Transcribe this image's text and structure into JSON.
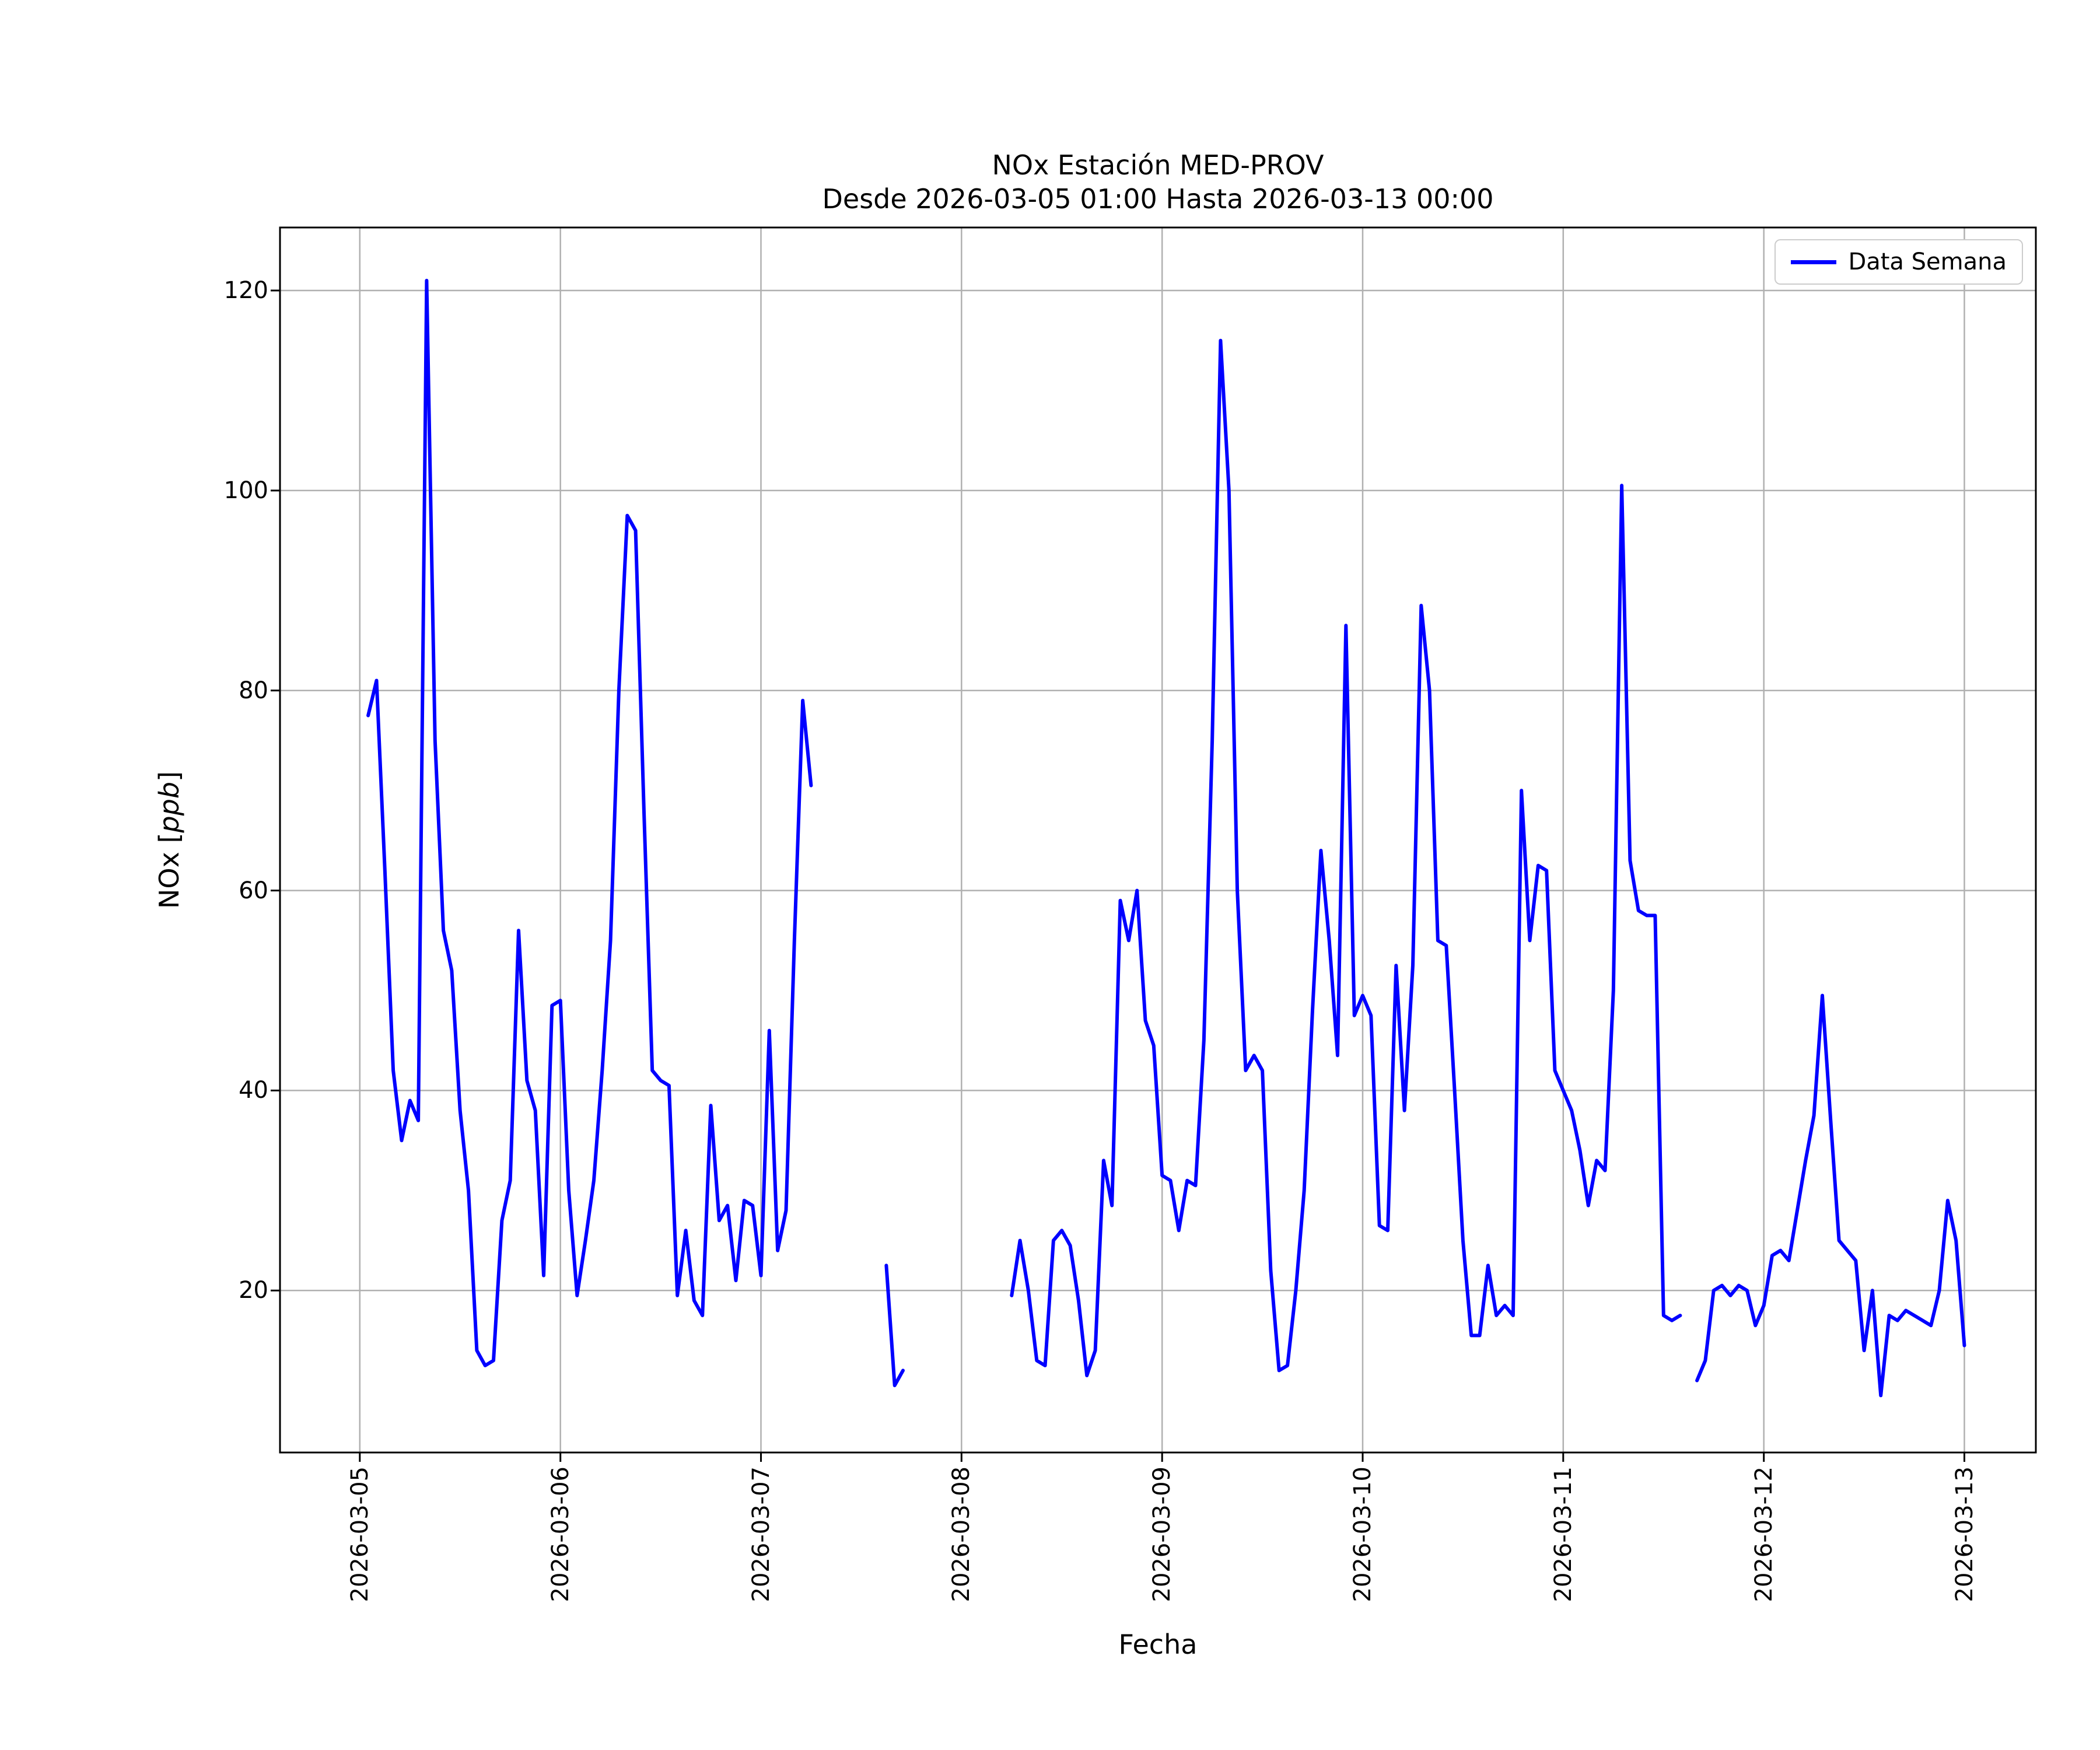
{
  "chart_data": {
    "type": "line",
    "title": "NOx Estación MED-PROV",
    "subtitle": "Desde 2026-03-05 01:00 Hasta 2026-03-13 00:00",
    "xlabel": "Fecha",
    "ylabel": "NOx [ppb]",
    "ylabel_parts": {
      "prefix": "NOx [",
      "italic": "ppb",
      "suffix": "]"
    },
    "grid": true,
    "legend_position": "upper right",
    "colors": {
      "line": "#0000ff",
      "grid": "#b0b0b0",
      "spine": "#000000",
      "legend_border": "#cccccc"
    },
    "x_tick_labels": [
      "2026-03-05",
      "2026-03-06",
      "2026-03-07",
      "2026-03-08",
      "2026-03-09",
      "2026-03-10",
      "2026-03-11",
      "2026-03-12",
      "2026-03-13"
    ],
    "x_tick_hours": [
      0,
      24,
      48,
      72,
      96,
      120,
      144,
      168,
      192
    ],
    "yticks": [
      20,
      40,
      60,
      80,
      100,
      120
    ],
    "ylim": [
      3.8,
      126.3
    ],
    "xlim_hours": [
      -9.55,
      200.55
    ],
    "x_unit": "hours since 2026-03-05 00:00, hourly samples",
    "start_hour": 1,
    "series": [
      {
        "name": "Data Semana",
        "color": "#0000ff",
        "values": [
          77.5,
          81,
          62,
          42,
          35,
          39,
          37,
          121,
          75,
          56,
          52,
          38,
          30,
          14,
          12.5,
          13,
          27,
          31,
          56,
          41,
          38,
          21.5,
          48.5,
          49,
          30,
          19.5,
          25,
          31,
          42,
          55,
          80,
          97.5,
          96,
          68,
          42,
          41,
          40.5,
          19.5,
          26,
          19,
          17.5,
          38.5,
          27,
          28.5,
          21,
          29,
          28.5,
          21.5,
          46,
          24,
          28,
          55,
          79,
          70.5,
          null,
          null,
          null,
          null,
          null,
          null,
          null,
          null,
          22.5,
          10.5,
          12,
          null,
          null,
          null,
          null,
          null,
          null,
          null,
          null,
          null,
          null,
          null,
          null,
          19.5,
          25,
          20,
          13,
          12.5,
          25,
          26,
          24.5,
          19,
          11.5,
          14,
          33,
          28.5,
          59,
          55,
          60,
          47,
          44.5,
          31.5,
          31,
          26,
          31,
          30.5,
          45,
          75,
          115,
          100,
          60,
          42,
          43.5,
          42,
          22,
          12,
          12.5,
          20,
          30,
          48,
          64,
          55,
          43.5,
          86.5,
          47.5,
          49.5,
          47.5,
          26.5,
          26,
          52.5,
          38,
          52.5,
          88.5,
          80,
          55,
          54.5,
          40,
          25,
          15.5,
          15.5,
          22.5,
          17.5,
          18.5,
          17.5,
          70,
          55,
          62.5,
          62,
          42,
          40,
          38,
          34,
          28.5,
          33,
          32,
          50,
          100.5,
          63,
          58,
          57.5,
          57.5,
          17.5,
          17,
          17.5,
          null,
          11,
          13,
          20,
          20.5,
          19.5,
          20.5,
          20,
          16.5,
          18.5,
          23.5,
          24,
          23,
          28,
          33,
          37.5,
          49.5,
          37,
          25,
          24,
          23,
          14,
          20,
          9.5,
          17.5,
          17,
          18,
          17.5,
          17,
          16.5,
          20,
          29,
          25,
          14.5
        ]
      }
    ]
  }
}
